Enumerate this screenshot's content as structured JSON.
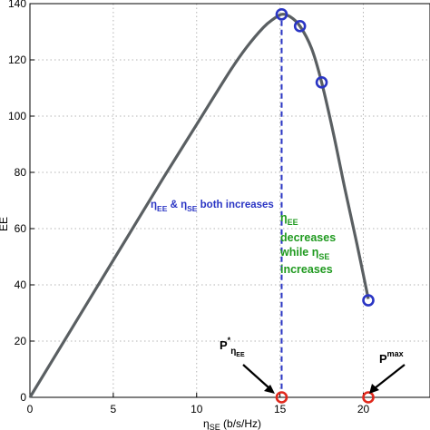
{
  "chart_data": {
    "type": "line",
    "xlabel_main": "η",
    "xlabel_sub": "SE",
    "xlabel_unit": " (b/s/Hz)",
    "ylabel": "EE",
    "xlim": [
      0,
      24
    ],
    "ylim": [
      0,
      140
    ],
    "x_ticks": [
      0,
      5,
      10,
      15,
      20
    ],
    "y_ticks": [
      0,
      20,
      40,
      60,
      80,
      100,
      120,
      140
    ],
    "grid": true,
    "curve": {
      "x": [
        0,
        2,
        4,
        6,
        8,
        10,
        12,
        13,
        14,
        14.6,
        15.1,
        15.6,
        16.2,
        16.9,
        17.5,
        18.2,
        18.9,
        19.6,
        20.3
      ],
      "y": [
        0,
        19.5,
        39,
        58.5,
        78,
        97,
        116,
        124.5,
        131.5,
        134.5,
        136.2,
        135.4,
        132,
        124,
        112,
        94,
        74,
        55,
        35
      ]
    },
    "blue_points": {
      "x": [
        15.1,
        16.2,
        17.5,
        20.3
      ],
      "y": [
        136.2,
        132,
        112,
        34.5
      ]
    },
    "red_points": {
      "x": [
        15.1,
        20.3
      ],
      "y": [
        0,
        0
      ]
    },
    "dashed_x": 15.1,
    "colors": {
      "curve": "#5a5f62",
      "blue": "#2a35c4",
      "green": "#1f9a1f",
      "red": "#e0281c",
      "grid": "#b5b5b5"
    }
  },
  "annotations": {
    "left_eta1": "η",
    "left_sub1": "EE",
    "left_amp": " & η",
    "left_sub2": "SE",
    "left_rest": " both increases",
    "right_eta": "η",
    "right_sub": "EE",
    "right_line2": "decreases",
    "right_line3a": "while η",
    "right_line3sub": "SE",
    "right_line4": "increases",
    "pstar_p": "P",
    "pstar_sup": "*",
    "pstar_sub_eta": "η",
    "pstar_sub_ee": "EE",
    "pmax_p": "P",
    "pmax_sup": "max"
  }
}
